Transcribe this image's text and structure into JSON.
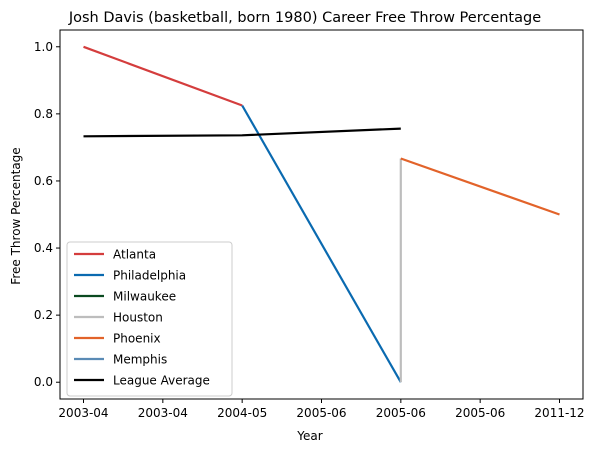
{
  "chart_data": {
    "type": "line",
    "title": "Josh Davis (basketball, born 1980) Career Free Throw Percentage",
    "xlabel": "Year",
    "ylabel": "Free Throw Percentage",
    "x_tick_labels": [
      "2003-04",
      "2003-04",
      "2004-05",
      "2005-06",
      "2005-06",
      "2005-06",
      "2011-12"
    ],
    "x_positions": [
      0,
      1,
      2,
      3,
      4,
      5,
      6
    ],
    "ylim": [
      -0.05,
      1.05
    ],
    "yticks": [
      0.0,
      0.2,
      0.4,
      0.6,
      0.8,
      1.0
    ],
    "ytick_labels": [
      "0.0",
      "0.2",
      "0.4",
      "0.6",
      "0.8",
      "1.0"
    ],
    "grid": false,
    "legend_placement": "lower-left",
    "series": [
      {
        "name": "Atlanta",
        "color": "#d43d3d",
        "points": [
          [
            0,
            1.0
          ],
          [
            2,
            0.825
          ]
        ]
      },
      {
        "name": "Philadelphia",
        "color": "#0a6ab0",
        "points": [
          [
            2,
            0.825
          ],
          [
            4,
            0.0
          ]
        ]
      },
      {
        "name": "Milwaukee",
        "color": "#0a4a20",
        "points": []
      },
      {
        "name": "Houston",
        "color": "#bdbdbd",
        "points": [
          [
            4,
            0.0
          ],
          [
            4,
            0.667
          ]
        ]
      },
      {
        "name": "Phoenix",
        "color": "#e2632a",
        "points": [
          [
            4,
            0.667
          ],
          [
            6,
            0.5
          ]
        ]
      },
      {
        "name": "Memphis",
        "color": "#5a8bb5",
        "points": []
      },
      {
        "name": "League Average",
        "color": "#000000",
        "points": [
          [
            0,
            0.733
          ],
          [
            2,
            0.736
          ],
          [
            4,
            0.756
          ]
        ]
      }
    ]
  }
}
